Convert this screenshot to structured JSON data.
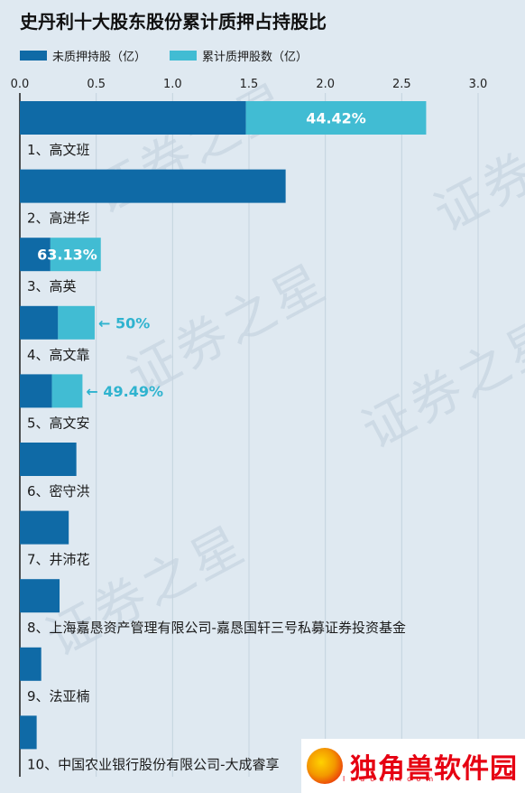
{
  "title": "史丹利十大股东股份累计质押占持股比",
  "legend": {
    "unpledged": "未质押持股（亿）",
    "pledged": "累计质押股数（亿）"
  },
  "colors": {
    "unpledged": "#0f6aa6",
    "pledged": "#41bcd3",
    "annotation": "#2fb3cf",
    "grid": "#c4d3de",
    "background": "#dfe9f1"
  },
  "watermark": "证券之星",
  "logo": {
    "text": "独角兽软件园",
    "sub": "luacan.com"
  },
  "chart_data": {
    "type": "bar",
    "orientation": "horizontal",
    "stacked": true,
    "xlim": [
      0,
      3.0
    ],
    "xticks": [
      "0.0",
      "0.5",
      "1.0",
      "1.5",
      "2.0",
      "2.5",
      "3.0"
    ],
    "tick_values": [
      0,
      0.5,
      1.0,
      1.5,
      2.0,
      2.5,
      3.0
    ],
    "grid": true,
    "legend_position": "top-left",
    "categories": [
      "1、高文班",
      "2、高进华",
      "3、高英",
      "4、高文靠",
      "5、高文安",
      "6、密守洪",
      "7、井沛花",
      "8、上海嘉恳资产管理有限公司-嘉恳国轩三号私募证券投资基金",
      "9、法亚楠",
      "10、中国农业银行股份有限公司-大成睿享"
    ],
    "series": [
      {
        "name": "未质押持股（亿）",
        "values": [
          1.48,
          1.74,
          0.2,
          0.25,
          0.21,
          0.37,
          0.32,
          0.26,
          0.14,
          0.11
        ]
      },
      {
        "name": "累计质押股数（亿）",
        "values": [
          1.18,
          0,
          0.33,
          0.24,
          0.2,
          0,
          0,
          0,
          0,
          0
        ]
      }
    ],
    "annotations": [
      "44.42%",
      "",
      "63.13%",
      "← 50%",
      "← 49.49%",
      "",
      "",
      "",
      "",
      ""
    ],
    "annotation_style": [
      "inside",
      "",
      "inside",
      "outside",
      "outside",
      "",
      "",
      "",
      "",
      ""
    ]
  }
}
